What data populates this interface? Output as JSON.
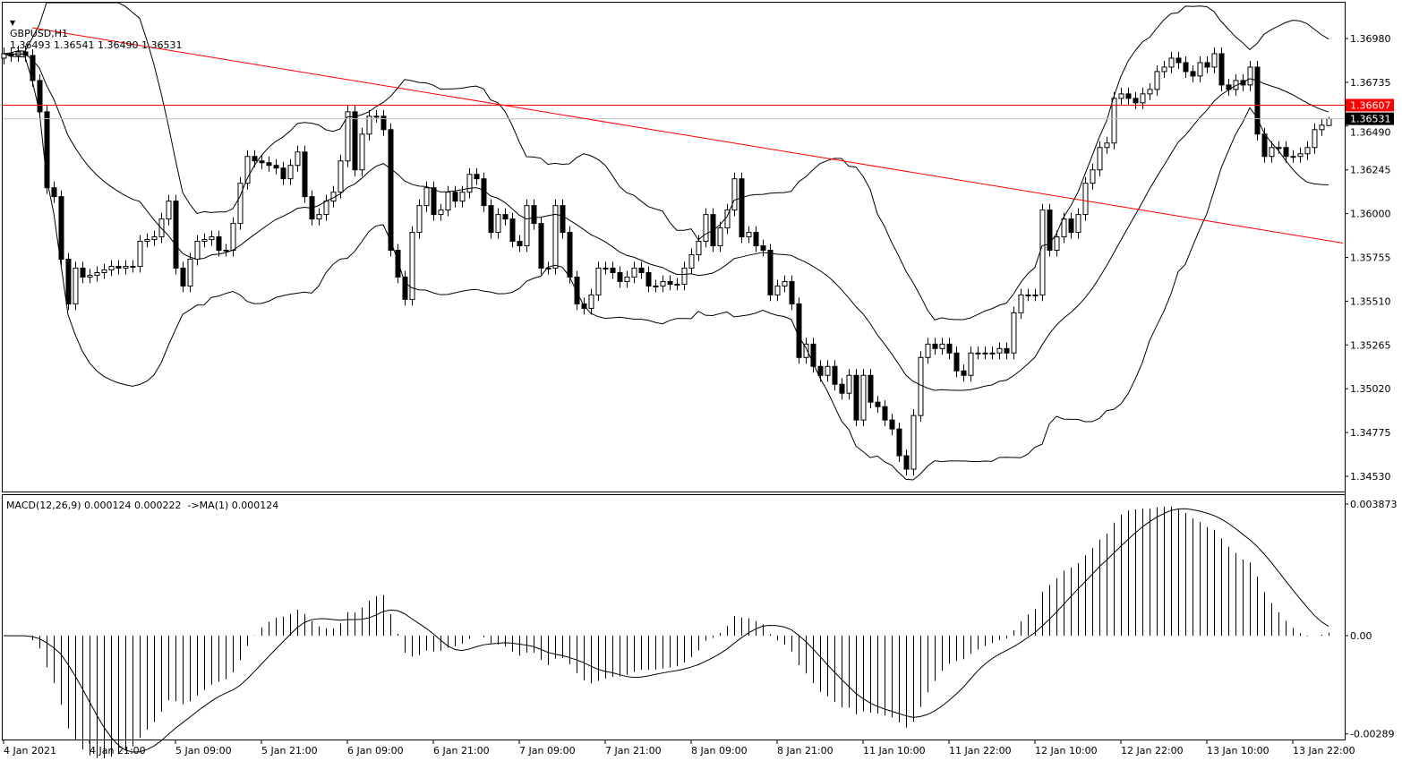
{
  "header": {
    "symbol": "GBPUSD,H1",
    "ohlc": "1.36493 1.36541 1.36490 1.36531",
    "menu_icon": "triangle-down-icon"
  },
  "macd_header": "MACD(12,26,9) 0.000124 0.000222  ->MA(1) 0.000124",
  "colors": {
    "bull_body": "#ffffff",
    "bear_body": "#000000",
    "line": "#000000",
    "level": "#ff0000",
    "bid_line": "#c0c0c0",
    "bid_label_bg": "#000000",
    "level_label_bg": "#ff0000"
  },
  "chart_data": [
    {
      "type": "candlestick",
      "title": "GBPUSD,H1",
      "timeframe": "H1",
      "first_open": 1.3687,
      "last_bar": {
        "open": 1.36493,
        "high": 1.36541,
        "low": 1.3649,
        "close": 1.36531
      },
      "close": [
        1.36895,
        1.36885,
        1.36905,
        1.36885,
        1.36745,
        1.3657,
        1.36145,
        1.36095,
        1.35745,
        1.35495,
        1.35695,
        1.35645,
        1.35655,
        1.3567,
        1.35685,
        1.35705,
        1.35695,
        1.35705,
        1.35705,
        1.35845,
        1.35855,
        1.3587,
        1.3597,
        1.3607,
        1.35695,
        1.35595,
        1.35745,
        1.35845,
        1.35855,
        1.3587,
        1.35795,
        1.35795,
        1.35945,
        1.3617,
        1.3632,
        1.36295,
        1.36285,
        1.3627,
        1.36255,
        1.36195,
        1.3627,
        1.36345,
        1.36095,
        1.3597,
        1.35995,
        1.3607,
        1.3612,
        1.36295,
        1.3657,
        1.36245,
        1.36445,
        1.36545,
        1.36545,
        1.3647,
        1.35795,
        1.35645,
        1.3552,
        1.35895,
        1.36045,
        1.36145,
        1.35995,
        1.3602,
        1.3612,
        1.3607,
        1.3612,
        1.3622,
        1.36195,
        1.36045,
        1.35895,
        1.35995,
        1.3597,
        1.35845,
        1.3582,
        1.36045,
        1.35945,
        1.35695,
        1.35695,
        1.36045,
        1.35895,
        1.35645,
        1.35495,
        1.3547,
        1.35545,
        1.35695,
        1.35695,
        1.3567,
        1.3562,
        1.35645,
        1.35695,
        1.3567,
        1.35595,
        1.35595,
        1.3562,
        1.35605,
        1.35605,
        1.35695,
        1.3577,
        1.35845,
        1.35995,
        1.3582,
        1.3592,
        1.3602,
        1.36195,
        1.3587,
        1.35895,
        1.3582,
        1.35795,
        1.35545,
        1.35595,
        1.3562,
        1.35495,
        1.35195,
        1.3527,
        1.35145,
        1.35095,
        1.35145,
        1.35045,
        1.34995,
        1.35095,
        1.34845,
        1.35095,
        1.34945,
        1.3492,
        1.34845,
        1.34795,
        1.34645,
        1.3457,
        1.3487,
        1.35195,
        1.3527,
        1.35245,
        1.3527,
        1.3522,
        1.3512,
        1.35095,
        1.3522,
        1.3522,
        1.3522,
        1.3522,
        1.35245,
        1.3522,
        1.35445,
        1.35545,
        1.35545,
        1.35545,
        1.3602,
        1.35795,
        1.3587,
        1.3597,
        1.35895,
        1.35995,
        1.3617,
        1.36245,
        1.3637,
        1.36395,
        1.36645,
        1.3667,
        1.36645,
        1.3662,
        1.3667,
        1.36695,
        1.36795,
        1.3682,
        1.3687,
        1.36845,
        1.36795,
        1.3677,
        1.36845,
        1.3682,
        1.36895,
        1.3672,
        1.36695,
        1.36745,
        1.3672,
        1.3682,
        1.36445,
        1.3632,
        1.3637,
        1.3637,
        1.3632,
        1.3632,
        1.36335,
        1.3637,
        1.3647,
        1.36495,
        1.36531
      ],
      "indicators": [
        "Bollinger Bands(20,2)"
      ],
      "y_ticks": [
        "1.36980",
        "1.36735",
        "1.36490",
        "1.36245",
        "1.36000",
        "1.35755",
        "1.35510",
        "1.35265",
        "1.35020",
        "1.34775",
        "1.34530"
      ],
      "ylim": [
        1.3448,
        1.3719
      ],
      "x_ticks": [
        {
          "bar": 0,
          "label": "4 Jan 2021"
        },
        {
          "bar": 12,
          "label": "4 Jan 21:00"
        },
        {
          "bar": 24,
          "label": "5 Jan 09:00"
        },
        {
          "bar": 36,
          "label": "5 Jan 21:00"
        },
        {
          "bar": 48,
          "label": "6 Jan 09:00"
        },
        {
          "bar": 60,
          "label": "6 Jan 21:00"
        },
        {
          "bar": 72,
          "label": "7 Jan 09:00"
        },
        {
          "bar": 84,
          "label": "7 Jan 21:00"
        },
        {
          "bar": 96,
          "label": "8 Jan 09:00"
        },
        {
          "bar": 108,
          "label": "8 Jan 21:00"
        },
        {
          "bar": 120,
          "label": "11 Jan 10:00"
        },
        {
          "bar": 132,
          "label": "11 Jan 22:00"
        },
        {
          "bar": 144,
          "label": "12 Jan 10:00"
        },
        {
          "bar": 156,
          "label": "12 Jan 22:00"
        },
        {
          "bar": 168,
          "label": "13 Jan 10:00"
        },
        {
          "bar": 180,
          "label": "13 Jan 22:00"
        }
      ],
      "horizontal_level": {
        "price": 1.36607,
        "label": "1.36607"
      },
      "bid_line": {
        "price": 1.36531,
        "label": "1.36531"
      },
      "trendline": {
        "from": {
          "bar": 4,
          "price": 1.3704
        },
        "to": {
          "bar": 187,
          "price": 1.35835
        }
      },
      "grid": false
    },
    {
      "type": "histogram+line",
      "title": "MACD(12,26,9)",
      "params": [
        12,
        26,
        9
      ],
      "values": {
        "main": 0.000124,
        "signal": 0.000222,
        "ma": 0.000124
      },
      "y_ticks": [
        "0.003873",
        "0.00",
        "-0.00289"
      ],
      "ylim": [
        -0.00289,
        0.003873
      ]
    }
  ]
}
